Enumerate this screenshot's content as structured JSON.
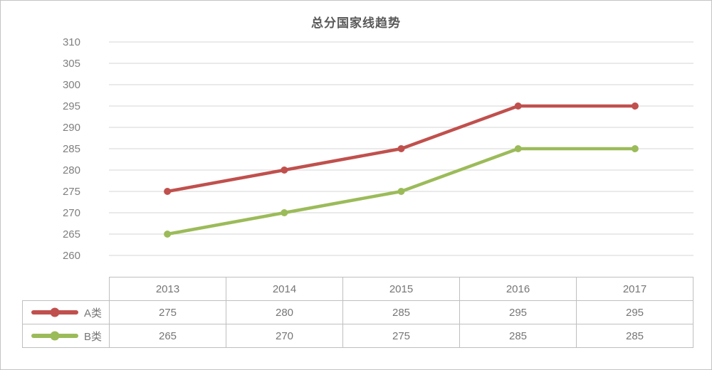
{
  "chart_data": {
    "type": "line",
    "title": "总分国家线趋势",
    "categories": [
      "2013",
      "2014",
      "2015",
      "2016",
      "2017"
    ],
    "series": [
      {
        "name": "A类",
        "color": "#C0504D",
        "values": [
          275,
          280,
          285,
          295,
          295
        ]
      },
      {
        "name": "B类",
        "color": "#9BBB59",
        "values": [
          265,
          270,
          275,
          285,
          285
        ]
      }
    ],
    "yticks": [
      310,
      305,
      300,
      295,
      290,
      285,
      280,
      275,
      270,
      265,
      260
    ],
    "ylim": [
      260,
      310
    ],
    "xlabel": "",
    "ylabel": "",
    "grid": "horizontal-only",
    "legend_position": "table-left",
    "colors": {
      "grid": "#d6d6d6",
      "axis_text": "#7f7f7f",
      "table_text": "#767676",
      "title": "#595959",
      "table_border": "#bfbfbf",
      "canvas_border": "#c3c3c3",
      "background": "#ffffff"
    }
  }
}
